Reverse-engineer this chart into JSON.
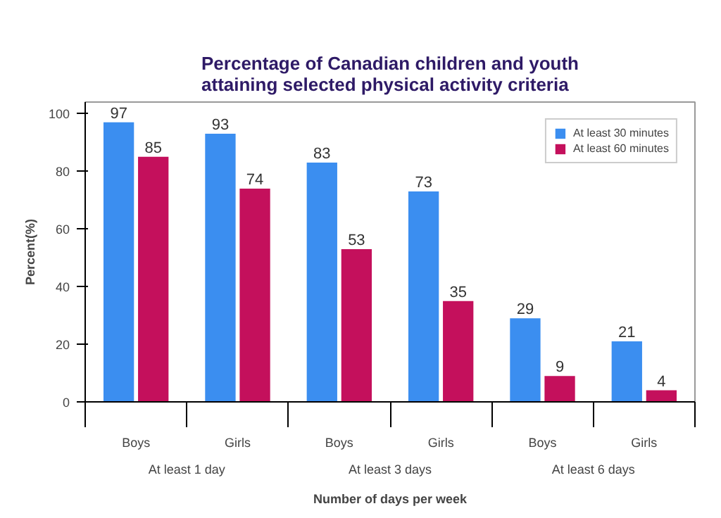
{
  "chart_data": {
    "type": "bar",
    "title": "Percentage of Canadian children and youth\nattaining selected physical activity criteria",
    "xlabel": "Number of days per week",
    "ylabel": "Percent(%)",
    "categories": [
      "Boys",
      "Girls",
      "Boys",
      "Girls",
      "Boys",
      "Girls"
    ],
    "annotations": [
      "At least 1 day",
      "At least 3 days",
      "At least 6 days"
    ],
    "series": [
      {
        "name": "At least 30 minutes",
        "color": "#3b8ef0",
        "values": [
          97,
          93,
          83,
          73,
          29,
          21
        ]
      },
      {
        "name": "At least 60 minutes",
        "color": "#c4105c",
        "values": [
          85,
          74,
          53,
          35,
          9,
          4
        ]
      }
    ],
    "ylim": [
      0,
      104
    ],
    "yticks": [
      0,
      20,
      40,
      60,
      80,
      100
    ],
    "data_labels": true,
    "legend": "top right",
    "grid": false
  }
}
